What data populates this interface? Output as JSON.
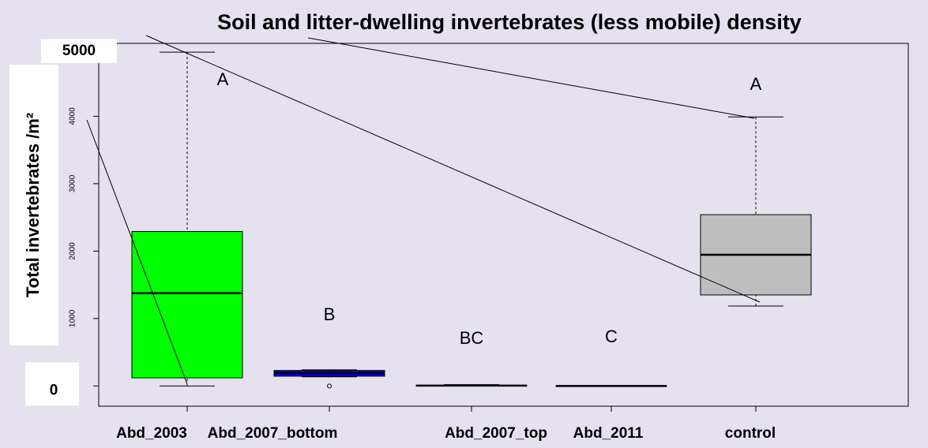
{
  "chart_data": {
    "type": "box",
    "title": "Soil and litter-dwelling invertebrates (less mobile) density",
    "y_label": "Total invertebrates /m²",
    "categories": [
      "Abd_2003",
      "Abd_2007_bottom",
      "Abd_2007_top",
      "Abd_2011",
      "control"
    ],
    "boxes": [
      {
        "whislo": 0,
        "q1": 120,
        "med": 1375,
        "q3": 2290,
        "whishi": 4950,
        "color": "#00ff00",
        "outliers": []
      },
      {
        "whislo": 135,
        "q1": 145,
        "med": 190,
        "q3": 230,
        "whishi": 240,
        "color": "#0000ff",
        "outliers": [
          0
        ]
      },
      {
        "whislo": 0,
        "q1": 0,
        "med": 5,
        "q3": 10,
        "whishi": 20,
        "color": "#9a9a9a",
        "outliers": []
      },
      {
        "whislo": 0,
        "q1": 0,
        "med": 0,
        "q3": 0,
        "whishi": 0,
        "color": "#9a9a9a",
        "outliers": []
      },
      {
        "whislo": 1185,
        "q1": 1350,
        "med": 1945,
        "q3": 2540,
        "whishi": 3990,
        "color": "#bebebe",
        "outliers": []
      }
    ],
    "letters": [
      "A",
      "B",
      "BC",
      "C",
      "A"
    ],
    "ylim": [
      -300,
      5080
    ],
    "yticks": [
      0,
      1000,
      2000,
      3000,
      4000,
      5000
    ]
  }
}
